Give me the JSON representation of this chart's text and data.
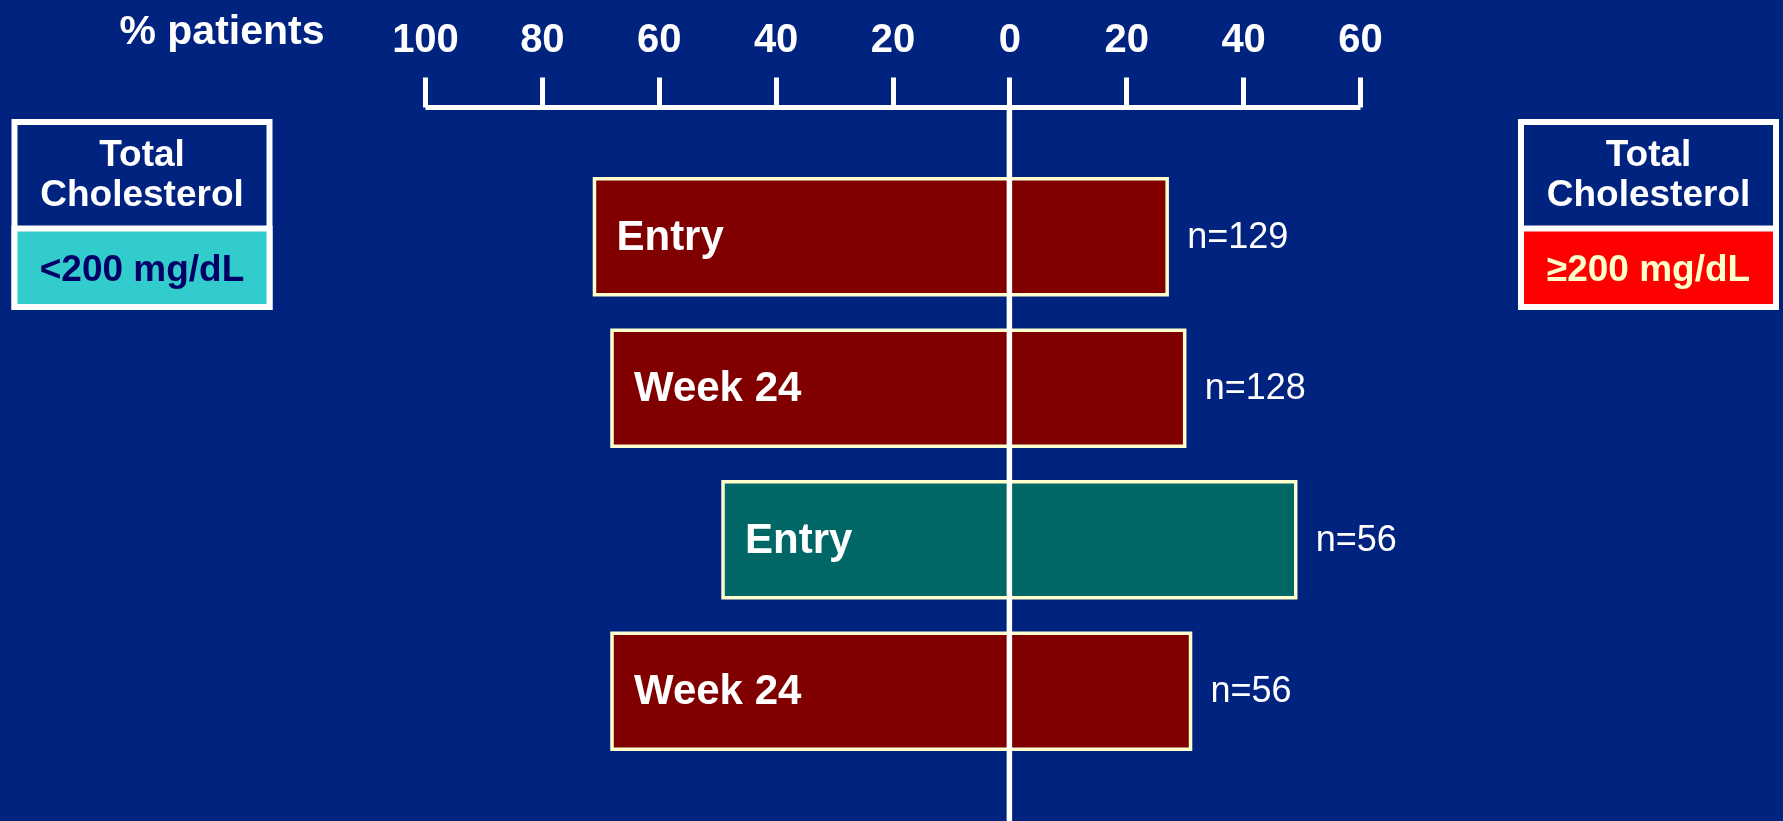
{
  "chart_data": {
    "type": "bar",
    "orientation": "horizontal",
    "stacked": true,
    "xlabel": "% patients",
    "categories": [
      "Entry",
      "Week 24",
      "Entry",
      "Week 24"
    ],
    "series": [
      {
        "colors": [
          "#800000",
          "#800000",
          "#006666",
          "#800000"
        ],
        "values": [
          -71,
          -68,
          -49,
          -68
        ]
      },
      {
        "colors": [
          "#800000",
          "#800000",
          "#006666",
          "#800000"
        ],
        "values": [
          27,
          30,
          49,
          31
        ]
      }
    ],
    "xlim": [
      -100,
      60
    ],
    "xticks": [
      {
        "value": -100,
        "label": "100"
      },
      {
        "value": -80,
        "label": "80"
      },
      {
        "value": -60,
        "label": "60"
      },
      {
        "value": -40,
        "label": "40"
      },
      {
        "value": -20,
        "label": "20"
      },
      0,
      20,
      40,
      60
    ],
    "ref_lines": [
      {
        "axis": "x",
        "value": 0,
        "color": "#ffffff"
      }
    ],
    "annotations": [
      "Total Cholesterol",
      "<200 mg/dL",
      "Total Cholesterol",
      "≥200 mg/dL",
      {
        "text": "n=129",
        "x": 27
      },
      {
        "text": "n=128",
        "x": 30
      },
      {
        "text": "n=56",
        "x": 49
      },
      {
        "text": "n=56",
        "x": 31
      }
    ]
  }
}
